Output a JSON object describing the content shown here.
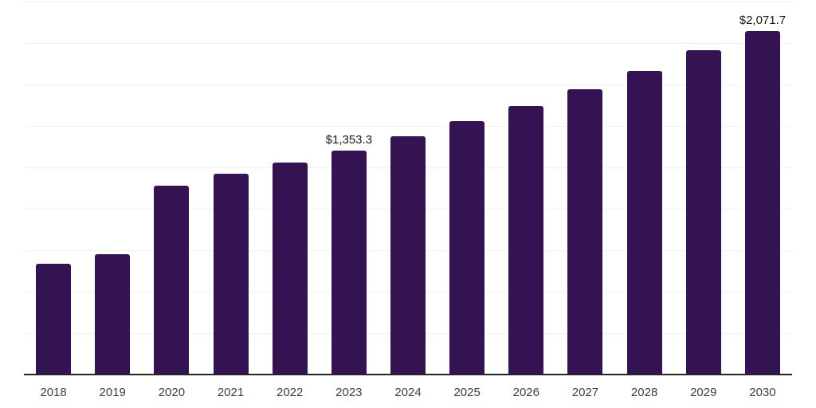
{
  "chart_data": {
    "type": "bar",
    "title": "",
    "xlabel": "",
    "ylabel": "",
    "categories": [
      "2018",
      "2019",
      "2020",
      "2021",
      "2022",
      "2023",
      "2024",
      "2025",
      "2026",
      "2027",
      "2028",
      "2029",
      "2030"
    ],
    "values": [
      668,
      727,
      1139,
      1212,
      1279,
      1353.3,
      1438,
      1529,
      1620,
      1721,
      1832,
      1957,
      2071.7
    ],
    "data_labels": [
      {
        "category": "2023",
        "text": "$1,353.3"
      },
      {
        "category": "2030",
        "text": "$2,071.7"
      }
    ],
    "ylim": [
      0,
      2250
    ],
    "gridline_interval": 250,
    "grid": "horizontal",
    "legend": "none",
    "colors": {
      "bar": "#341352",
      "axis_line": "#262626",
      "gridline": "#f2f2f2",
      "data_label": "#1a1a1a",
      "tick_label": "#404040",
      "background": "#ffffff"
    }
  }
}
